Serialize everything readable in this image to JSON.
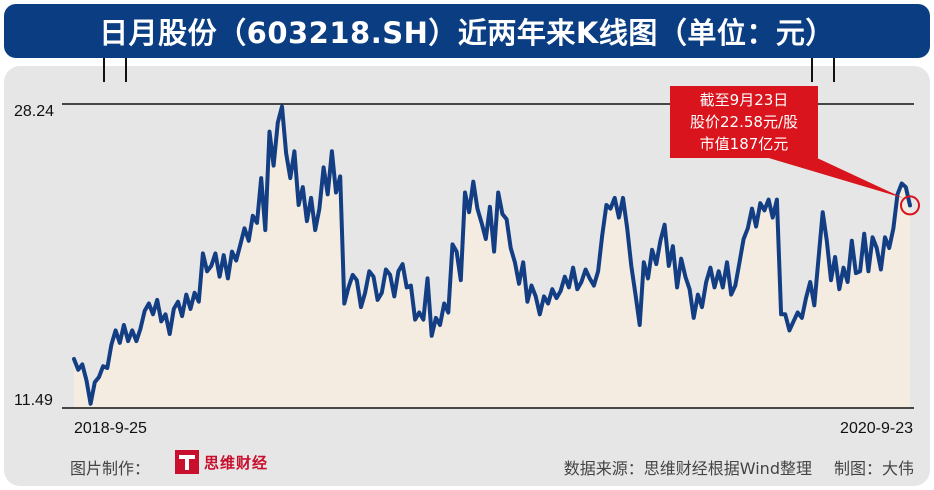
{
  "title": "日月股份（603218.SH）近两年来K线图（单位：元）",
  "chart_data": {
    "type": "line",
    "ylim": [
      11.49,
      28.24
    ],
    "y_tick_labels": [
      "28.24",
      "11.49"
    ],
    "x_tick_labels": [
      "2018-9-25",
      "2020-9-23"
    ],
    "series": [
      {
        "values": [
          14.0,
          13.4,
          13.7,
          12.8,
          11.5,
          12.7,
          13.0,
          13.6,
          13.5,
          14.8,
          15.6,
          14.9,
          15.9,
          15.0,
          15.6,
          15.0,
          15.7,
          16.7,
          17.1,
          16.5,
          17.3,
          16.1,
          16.5,
          15.4,
          16.8,
          17.2,
          16.4,
          17.6,
          16.8,
          17.7,
          17.2,
          19.9,
          18.9,
          19.2,
          19.9,
          18.6,
          19.8,
          18.5,
          20.0,
          19.5,
          20.4,
          21.3,
          20.6,
          22.0,
          21.6,
          24.1,
          21.2,
          26.7,
          24.8,
          27.2,
          28.1,
          25.5,
          24.1,
          25.6,
          22.6,
          23.6,
          21.7,
          23.0,
          21.2,
          22.4,
          24.7,
          23.2,
          25.6,
          23.3,
          24.2,
          17.1,
          18.0,
          18.7,
          18.4,
          16.9,
          17.7,
          18.9,
          18.6,
          17.3,
          17.7,
          19.0,
          18.7,
          17.5,
          18.9,
          19.3,
          18.0,
          18.1,
          16.2,
          16.6,
          16.2,
          18.5,
          15.3,
          16.3,
          15.9,
          17.1,
          16.6,
          20.4,
          20.0,
          18.4,
          23.3,
          22.2,
          23.9,
          22.4,
          21.6,
          20.7,
          22.5,
          20.0,
          23.3,
          22.1,
          21.8,
          20.2,
          19.4,
          18.2,
          19.4,
          17.2,
          18.1,
          17.5,
          16.5,
          17.5,
          17.1,
          17.9,
          17.4,
          17.8,
          18.6,
          18.0,
          19.1,
          17.9,
          18.3,
          19.0,
          18.5,
          18.1,
          18.9,
          20.9,
          22.6,
          22.4,
          23.0,
          21.9,
          23.0,
          21.3,
          19.2,
          17.6,
          15.9,
          19.4,
          18.5,
          20.1,
          19.3,
          20.6,
          21.5,
          19.2,
          20.3,
          18.0,
          19.6,
          18.6,
          17.9,
          16.3,
          17.6,
          16.9,
          18.3,
          19.1,
          18.0,
          18.9,
          18.0,
          19.4,
          17.6,
          18.1,
          19.4,
          20.7,
          21.3,
          22.4,
          21.4,
          22.7,
          22.3,
          22.9,
          21.9,
          22.9,
          16.5,
          16.5,
          15.6,
          16.1,
          16.6,
          16.3,
          17.4,
          18.3,
          17.0,
          19.6,
          22.2,
          20.6,
          18.4,
          19.7,
          17.9,
          19.1,
          18.3,
          20.6,
          18.8,
          18.9,
          21.0,
          18.9,
          20.8,
          20.2,
          19.0,
          20.8,
          20.2,
          21.3,
          23.2,
          23.8,
          23.6,
          22.58
        ]
      }
    ],
    "annotation": [
      "截至9月23日",
      "股价22.58元/股",
      "市值187亿元"
    ]
  },
  "footer": {
    "image_credit_label": "图片制作：",
    "logo_text": "思维财经",
    "data_source": "数据来源：思维财经根据Wind整理",
    "made_by": "制图：大伟"
  }
}
